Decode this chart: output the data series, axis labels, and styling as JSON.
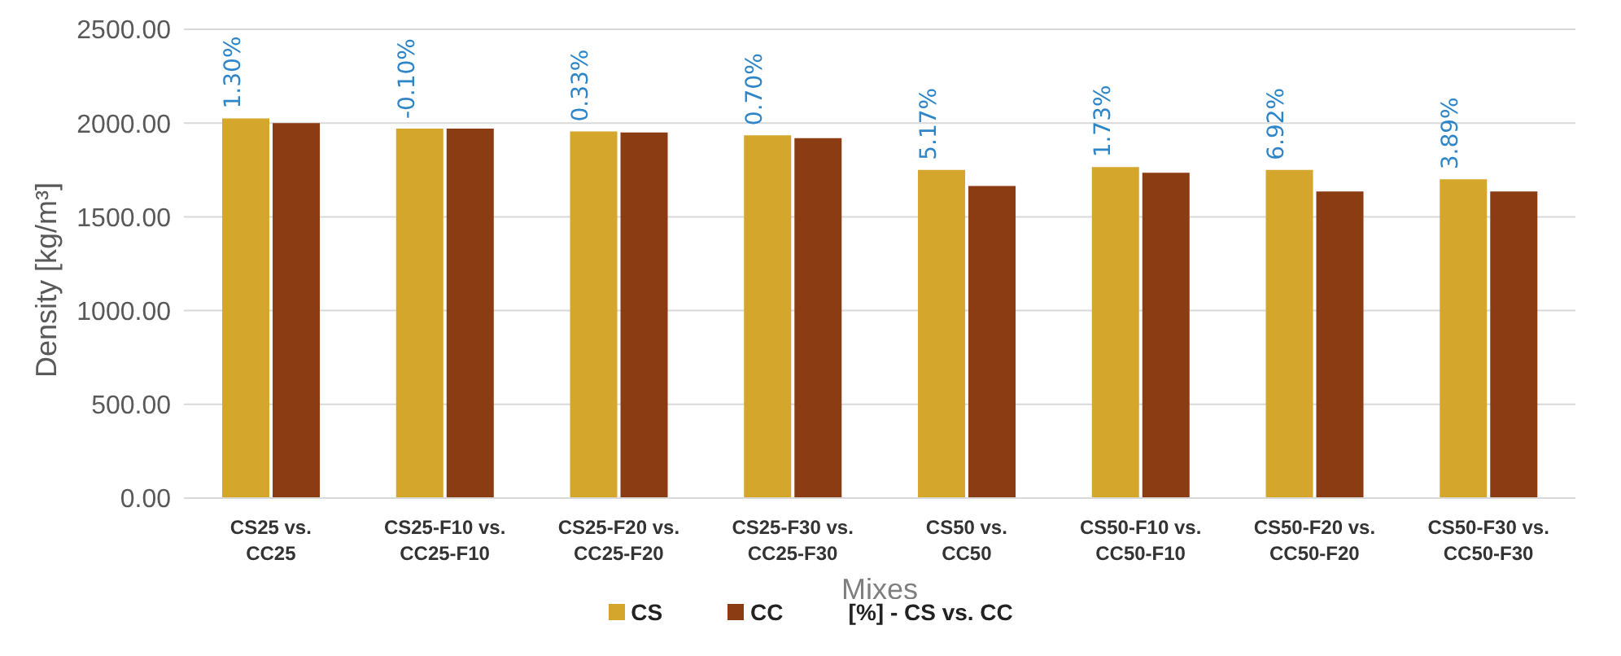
{
  "chart_data": {
    "type": "bar",
    "xlabel": "Mixes",
    "ylabel": "Density [kg/m³]",
    "categories": [
      "CS25 vs. CC25",
      "CS25-F10 vs. CC25-F10",
      "CS25-F20 vs. CC25-F20",
      "CS25-F30 vs. CC25-F30",
      "CS50 vs. CC50",
      "CS50-F10 vs. CC50-F10",
      "CS50-F20 vs. CC50-F20",
      "CS50-F30 vs. CC50-F30"
    ],
    "series": [
      {
        "name": "CS",
        "color": "#d4a72c",
        "values": [
          2025,
          1970,
          1955,
          1935,
          1750,
          1765,
          1750,
          1700
        ]
      },
      {
        "name": "CC",
        "color": "#8b3c12",
        "values": [
          2000,
          1970,
          1950,
          1920,
          1665,
          1735,
          1635,
          1635
        ]
      }
    ],
    "ylim": [
      0,
      2500
    ],
    "yticks": [
      {
        "value": 0,
        "label": "0.00"
      },
      {
        "value": 500,
        "label": "500.00"
      },
      {
        "value": 1000,
        "label": "1000.00"
      },
      {
        "value": 1500,
        "label": "1500.00"
      },
      {
        "value": 2000,
        "label": "2000.00"
      },
      {
        "value": 2500,
        "label": "2500.00"
      }
    ],
    "grid": "y",
    "legend": "bottom",
    "annotations": [
      {
        "text": "1.30%",
        "x": "CS25 vs. CC25",
        "y": 2025
      },
      {
        "text": "-0.10%",
        "x": "CS25-F10 vs. CC25-F10",
        "y": 1970
      },
      {
        "text": "0.33%",
        "x": "CS25-F20 vs. CC25-F20",
        "y": 1955
      },
      {
        "text": "0.70%",
        "x": "CS25-F30 vs. CC25-F30",
        "y": 1935
      },
      {
        "text": "5.17%",
        "x": "CS50 vs. CC50",
        "y": 1750
      },
      {
        "text": "1.73%",
        "x": "CS50-F10 vs. CC50-F10",
        "y": 1765
      },
      {
        "text": "6.92%",
        "x": "CS50-F20 vs. CC50-F20",
        "y": 1750
      },
      {
        "text": "3.89%",
        "x": "CS50-F30 vs. CC50-F30",
        "y": 1700
      },
      "[%] - CS vs. CC"
    ]
  }
}
